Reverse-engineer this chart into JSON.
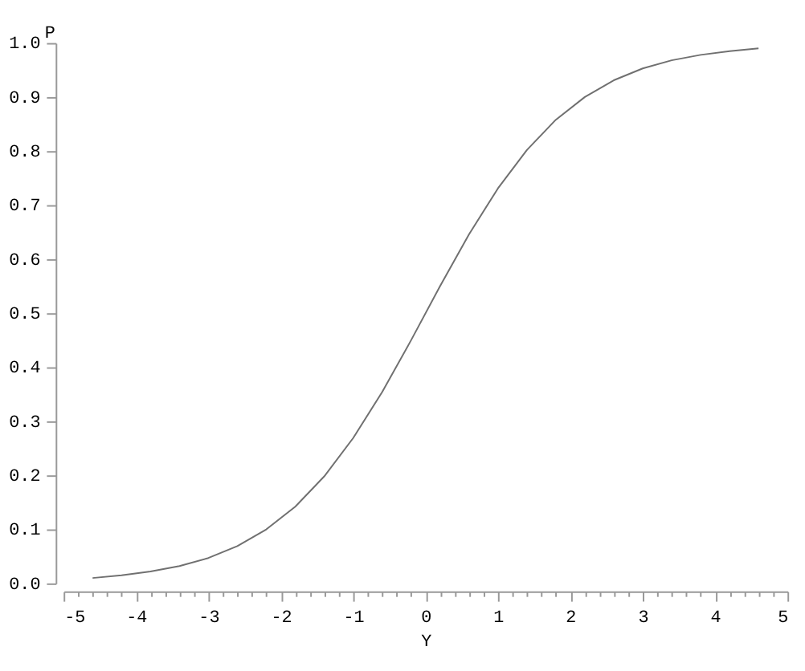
{
  "chart_data": {
    "type": "line",
    "xlabel": "Y",
    "ylabel": "P",
    "color": "#707070",
    "marker": "none",
    "grid": false,
    "x": [
      -4.6,
      -4.2,
      -3.8,
      -3.4,
      -3.0,
      -2.6,
      -2.2,
      -1.8,
      -1.4,
      -1.0,
      -0.6,
      -0.2,
      0.2,
      0.6,
      1.0,
      1.4,
      1.8,
      2.2,
      2.6,
      3.0,
      3.4,
      3.8,
      4.2,
      4.6
    ],
    "values": [
      0.01,
      0.015,
      0.022,
      0.032,
      0.047,
      0.069,
      0.1,
      0.142,
      0.198,
      0.269,
      0.354,
      0.45,
      0.55,
      0.646,
      0.731,
      0.802,
      0.858,
      0.9,
      0.931,
      0.953,
      0.968,
      0.978,
      0.985,
      0.99
    ],
    "xlim": [
      -5,
      5
    ],
    "xticks": [
      -5,
      {
        "value": -4.8,
        "label": null
      },
      {
        "value": -4.6,
        "label": null
      },
      {
        "value": -4.4,
        "label": null
      },
      {
        "value": -4.2,
        "label": null
      },
      -4,
      {
        "value": -3.8,
        "label": null
      },
      {
        "value": -3.6,
        "label": null
      },
      {
        "value": -3.4,
        "label": null
      },
      {
        "value": -3.2,
        "label": null
      },
      -3,
      {
        "value": -2.8,
        "label": null
      },
      {
        "value": -2.6,
        "label": null
      },
      {
        "value": -2.4,
        "label": null
      },
      {
        "value": -2.2,
        "label": null
      },
      -2,
      {
        "value": -1.8,
        "label": null
      },
      {
        "value": -1.6,
        "label": null
      },
      {
        "value": -1.4,
        "label": null
      },
      {
        "value": -1.2,
        "label": null
      },
      -1,
      {
        "value": -0.8,
        "label": null
      },
      {
        "value": -0.6,
        "label": null
      },
      {
        "value": -0.4,
        "label": null
      },
      {
        "value": -0.2,
        "label": null
      },
      0,
      {
        "value": 0.2,
        "label": null
      },
      {
        "value": 0.4,
        "label": null
      },
      {
        "value": 0.6,
        "label": null
      },
      {
        "value": 0.8,
        "label": null
      },
      1,
      {
        "value": 1.2,
        "label": null
      },
      {
        "value": 1.4,
        "label": null
      },
      {
        "value": 1.6,
        "label": null
      },
      {
        "value": 1.8,
        "label": null
      },
      2,
      {
        "value": 2.2,
        "label": null
      },
      {
        "value": 2.4,
        "label": null
      },
      {
        "value": 2.6,
        "label": null
      },
      {
        "value": 2.8,
        "label": null
      },
      3,
      {
        "value": 3.2,
        "label": null
      },
      {
        "value": 3.4,
        "label": null
      },
      {
        "value": 3.6,
        "label": null
      },
      {
        "value": 3.8,
        "label": null
      },
      4,
      {
        "value": 4.2,
        "label": null
      },
      {
        "value": 4.4,
        "label": null
      },
      {
        "value": 4.6,
        "label": null
      },
      {
        "value": 4.8,
        "label": null
      },
      5
    ],
    "ylim": [
      0,
      1
    ],
    "yticks": [
      {
        "value": 0,
        "label": "0.0"
      },
      0.1,
      0.2,
      0.3,
      0.4,
      0.5,
      0.6,
      0.7,
      0.8,
      0.9,
      {
        "value": 1,
        "label": "1.0"
      }
    ]
  }
}
